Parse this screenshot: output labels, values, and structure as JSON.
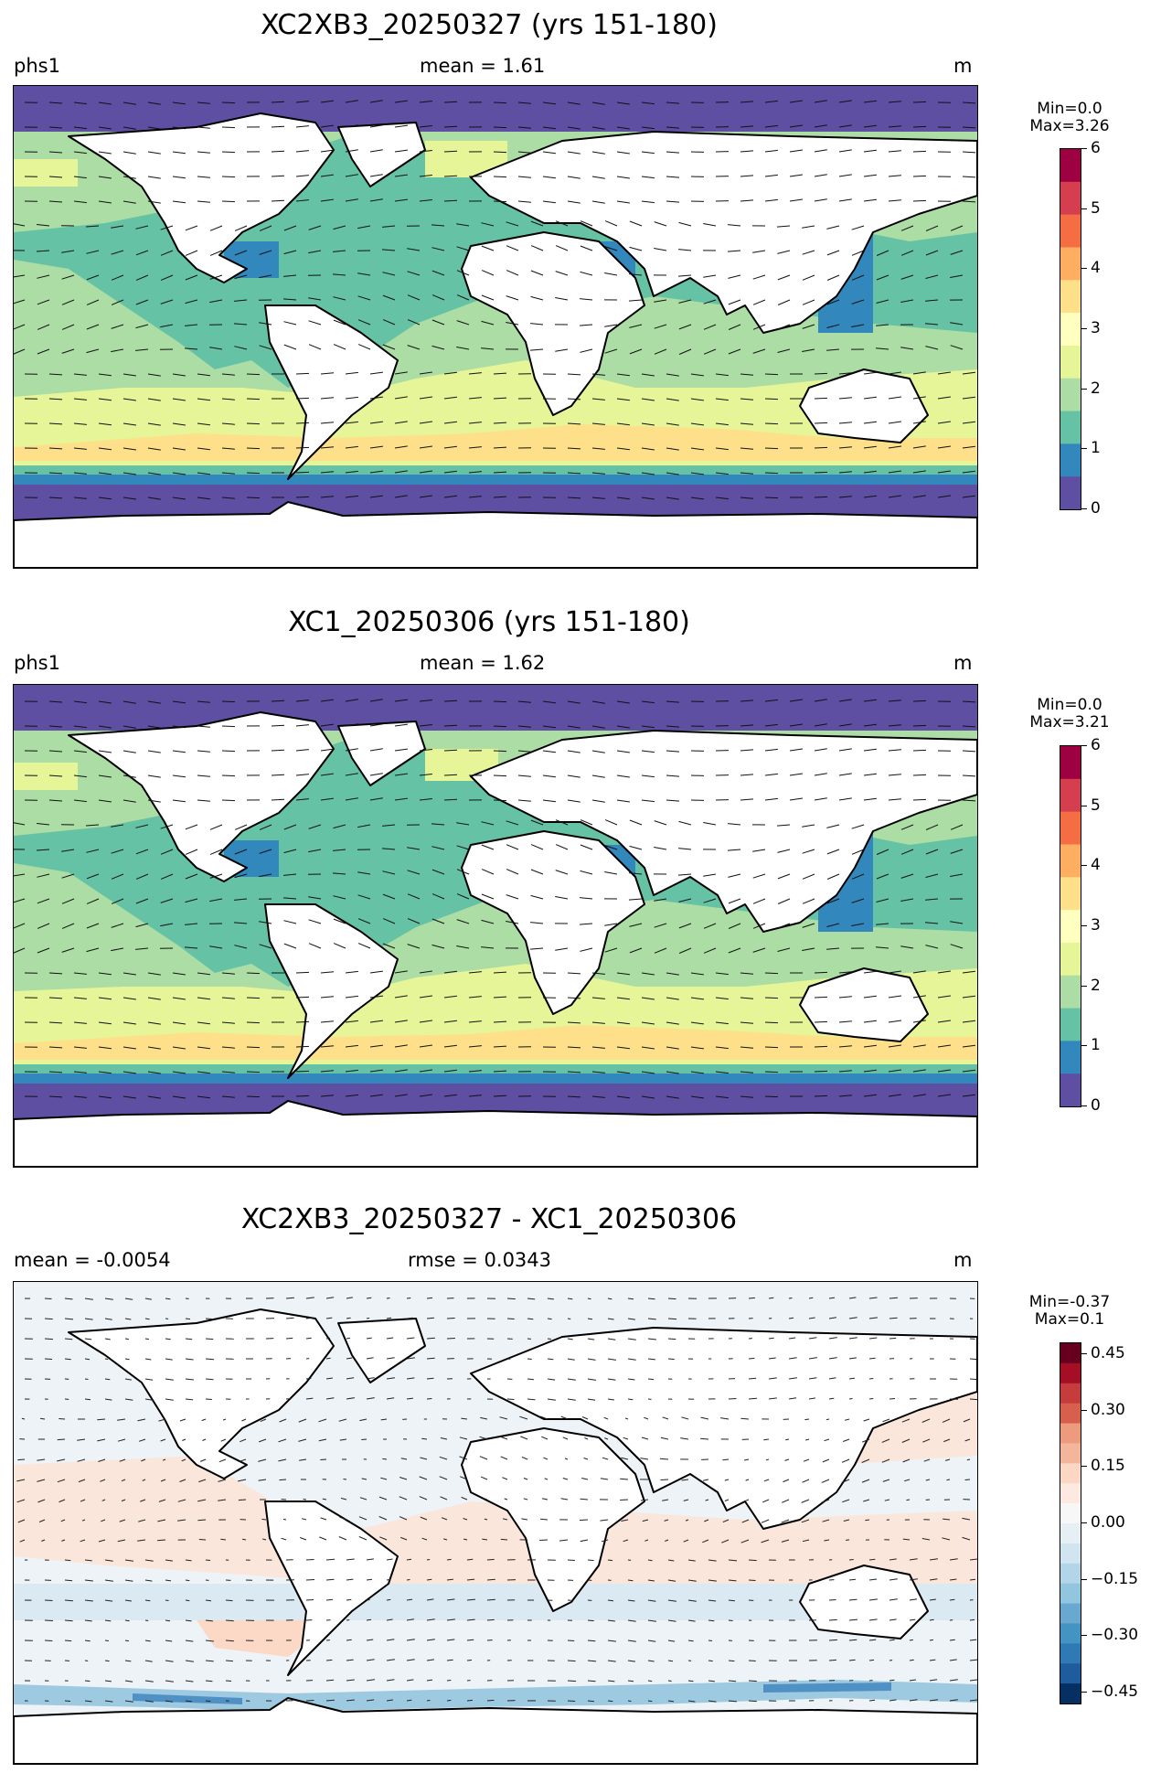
{
  "panels": [
    {
      "title": "XC2XB3_20250327 (yrs 151-180)",
      "left_label": "phs1",
      "center_label": "mean = 1.61",
      "right_label": "m",
      "colorbar": {
        "min_label": "Min=0.0",
        "max_label": "Max=3.26",
        "ticks": [
          "6",
          "5",
          "4",
          "3",
          "2",
          "1",
          "0"
        ],
        "colors": [
          "#9e0142",
          "#d53e4f",
          "#f46d43",
          "#fdae61",
          "#fee08b",
          "#ffffbf",
          "#e6f598",
          "#abdda4",
          "#66c2a5",
          "#3288bd",
          "#5e4fa2"
        ]
      },
      "map_colors": {
        "ice": "#5e4fa2",
        "coast": "#3288bd",
        "mid": "#66c2a5",
        "green": "#abdda4",
        "light": "#e6f598",
        "peak": "#fee08b"
      }
    },
    {
      "title": "XC1_20250306 (yrs 151-180)",
      "left_label": "phs1",
      "center_label": "mean = 1.62",
      "right_label": "m",
      "colorbar": {
        "min_label": "Min=0.0",
        "max_label": "Max=3.21",
        "ticks": [
          "6",
          "5",
          "4",
          "3",
          "2",
          "1",
          "0"
        ],
        "colors": [
          "#9e0142",
          "#d53e4f",
          "#f46d43",
          "#fdae61",
          "#fee08b",
          "#ffffbf",
          "#e6f598",
          "#abdda4",
          "#66c2a5",
          "#3288bd",
          "#5e4fa2"
        ]
      },
      "map_colors": {
        "ice": "#5e4fa2",
        "coast": "#3288bd",
        "mid": "#66c2a5",
        "green": "#abdda4",
        "light": "#e6f598",
        "peak": "#fee08b"
      }
    },
    {
      "title": "XC2XB3_20250327 - XC1_20250306",
      "left_label": "mean = -0.0054",
      "center_label": "rmse = 0.0343",
      "right_label": "m",
      "colorbar": {
        "min_label": "Min=-0.37",
        "max_label": "Max=0.1",
        "ticks": [
          "0.45",
          "0.30",
          "0.15",
          "0.00",
          "−0.15",
          "−0.30",
          "−0.45"
        ],
        "colors": [
          "#67001f",
          "#a50f26",
          "#c63b3b",
          "#d6604d",
          "#ec9b7f",
          "#f4b69b",
          "#fbd7c4",
          "#fde9df",
          "#f7f7f7",
          "#e6eff4",
          "#d1e5f0",
          "#b3d5e8",
          "#92c5de",
          "#6aa9cf",
          "#4393c3",
          "#2f79b5",
          "#1f5c9e",
          "#053061"
        ]
      },
      "map_colors": {
        "base": "#edf3f7",
        "warm": "#fbe6dc",
        "warm2": "#fcd9c6",
        "cool": "#dbe9f2",
        "cool2": "#9ecae1",
        "cool3": "#4f91c4"
      }
    }
  ]
}
